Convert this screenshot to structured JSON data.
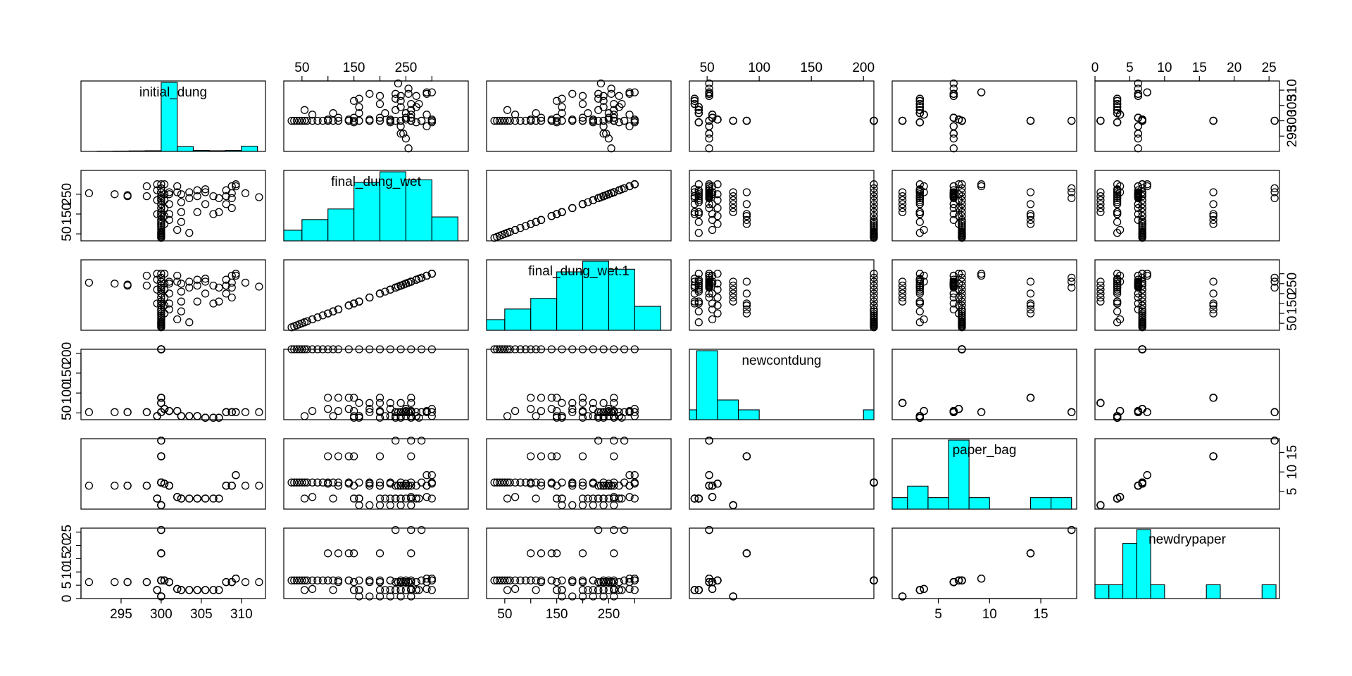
{
  "chart_data": {
    "type": "scatter",
    "variables": [
      {
        "name": "initial_dung",
        "range": [
          290,
          313
        ],
        "ticks": [
          295,
          300,
          305,
          310
        ],
        "tick_labels": [
          "295",
          "300",
          "305",
          "310"
        ]
      },
      {
        "name": "final_dung_wet",
        "range": [
          15,
          370
        ],
        "ticks": [
          50,
          150,
          250
        ],
        "tick_labels": [
          "50",
          "150",
          "250"
        ],
        "top_ticks": [
          50,
          100,
          150,
          200,
          250,
          300
        ],
        "top_tick_labels": [
          "50",
          "150",
          "250"
        ]
      },
      {
        "name": "final_dung_wet.1",
        "range": [
          15,
          370
        ],
        "ticks": [
          50,
          100,
          150,
          200,
          250,
          300
        ],
        "tick_labels": [
          "50",
          "150",
          "250"
        ]
      },
      {
        "name": "newcontdung",
        "range": [
          33,
          210
        ],
        "ticks": [
          50,
          100,
          150,
          200
        ],
        "tick_labels": [
          "50",
          "100",
          "150",
          "200"
        ]
      },
      {
        "name": "paper_bag",
        "range": [
          0.5,
          18.5
        ],
        "ticks": [
          5,
          10,
          15
        ],
        "tick_labels": [
          "5",
          "10",
          "15"
        ]
      },
      {
        "name": "newdrypaper",
        "range": [
          0,
          26.5
        ],
        "ticks": [
          0,
          5,
          10,
          15,
          20,
          25
        ],
        "tick_labels": [
          "0",
          "5",
          "10",
          "15",
          "20",
          "25"
        ]
      }
    ],
    "histograms": [
      {
        "variable": "initial_dung",
        "breaks": [
          290,
          292,
          294,
          296,
          298,
          300,
          302,
          304,
          306,
          308,
          310,
          312
        ],
        "counts": [
          0,
          1,
          2,
          3,
          4,
          400,
          28,
          6,
          4,
          6,
          30,
          0
        ]
      },
      {
        "variable": "final_dung_wet",
        "breaks": [
          0,
          50,
          100,
          150,
          200,
          250,
          300,
          350
        ],
        "counts": [
          20,
          40,
          60,
          110,
          130,
          115,
          45
        ]
      },
      {
        "variable": "final_dung_wet.1",
        "breaks": [
          0,
          50,
          100,
          150,
          200,
          250,
          300,
          350
        ],
        "counts": [
          20,
          40,
          60,
          110,
          130,
          115,
          45
        ]
      },
      {
        "variable": "newcontdung",
        "breaks": [
          20,
          40,
          60,
          80,
          100,
          120,
          140,
          160,
          180,
          200,
          220
        ],
        "counts": [
          2,
          14,
          4,
          2,
          0,
          0,
          0,
          0,
          0,
          2
        ]
      },
      {
        "variable": "paper_bag",
        "breaks": [
          0,
          2,
          4,
          6,
          8,
          10,
          12,
          14,
          16,
          18
        ],
        "counts": [
          1,
          2,
          1,
          6,
          1,
          0,
          0,
          1,
          1
        ]
      },
      {
        "variable": "newdrypaper",
        "breaks": [
          0,
          2,
          4,
          6,
          8,
          10,
          12,
          14,
          16,
          18,
          20,
          22,
          24,
          26
        ],
        "counts": [
          1,
          1,
          4,
          5,
          1,
          0,
          0,
          0,
          1,
          0,
          0,
          0,
          1
        ]
      }
    ],
    "groups": [
      {
        "id": "g1",
        "initial_dung": 291,
        "final_dung_wet": [
          255
        ],
        "newcontdung": 52,
        "paper_bag": 6.5,
        "newdrypaper": 6.2
      },
      {
        "id": "g2",
        "initial_dung": 294.2,
        "final_dung_wet": [
          250
        ],
        "newcontdung": 52,
        "paper_bag": 6.5,
        "newdrypaper": 6.2
      },
      {
        "id": "g3",
        "initial_dung": 295.8,
        "final_dung_wet": [
          240,
          245
        ],
        "newcontdung": 52,
        "paper_bag": 6.5,
        "newdrypaper": 6.2
      },
      {
        "id": "g4",
        "initial_dung": 298.2,
        "final_dung_wet": [
          240,
          290
        ],
        "newcontdung": 52,
        "paper_bag": 6.5,
        "newdrypaper": 6.2
      },
      {
        "id": "g5",
        "initial_dung": 299.5,
        "final_dung_wet": [
          150,
          220,
          270,
          300
        ],
        "newcontdung": 42,
        "paper_bag": 3.2,
        "newdrypaper": 3.2
      },
      {
        "id": "g6",
        "initial_dung": 300,
        "final_dung_wet": [
          30,
          35,
          40,
          45,
          50,
          55,
          60,
          70,
          80,
          90,
          100,
          110,
          120,
          140,
          160,
          180,
          200,
          220,
          240,
          260,
          280,
          300
        ],
        "newcontdung": 210,
        "paper_bag": 7.3,
        "newdrypaper": 6.8
      },
      {
        "id": "g7",
        "initial_dung": 300,
        "final_dung_wet": [
          160,
          180,
          200,
          220,
          240,
          260
        ],
        "newcontdung": 75,
        "paper_bag": 1.5,
        "newdrypaper": 0.8
      },
      {
        "id": "g8",
        "initial_dung": 300,
        "final_dung_wet": [
          100,
          120,
          140,
          150,
          200,
          260
        ],
        "newcontdung": 88,
        "paper_bag": 14,
        "newdrypaper": 17
      },
      {
        "id": "g9",
        "initial_dung": 300,
        "final_dung_wet": [
          230,
          260,
          280
        ],
        "newcontdung": 52,
        "paper_bag": 18,
        "newdrypaper": 25.8
      },
      {
        "id": "g10",
        "initial_dung": 300.4,
        "final_dung_wet": [
          100,
          140,
          180,
          220,
          250,
          300
        ],
        "newcontdung": 60,
        "paper_bag": 7,
        "newdrypaper": 6.8
      },
      {
        "id": "g11",
        "initial_dung": 301,
        "final_dung_wet": [
          120,
          150,
          200,
          250,
          260
        ],
        "newcontdung": 55,
        "paper_bag": 6.5,
        "newdrypaper": 6.2
      },
      {
        "id": "g12",
        "initial_dung": 302.5,
        "final_dung_wet": [
          110,
          160,
          210,
          250
        ],
        "newcontdung": 42,
        "paper_bag": 3.2,
        "newdrypaper": 3.2
      },
      {
        "id": "g13",
        "initial_dung": 302,
        "final_dung_wet": [
          70,
          260,
          290
        ],
        "newcontdung": 55,
        "paper_bag": 3.6,
        "newdrypaper": 3.6
      },
      {
        "id": "g14",
        "initial_dung": 303.5,
        "final_dung_wet": [
          55,
          230,
          260
        ],
        "newcontdung": 42,
        "paper_bag": 3.2,
        "newdrypaper": 3.2
      },
      {
        "id": "g15",
        "initial_dung": 304.5,
        "final_dung_wet": [
          160,
          240,
          270
        ],
        "newcontdung": 42,
        "paper_bag": 3.2,
        "newdrypaper": 3.2
      },
      {
        "id": "g16",
        "initial_dung": 305.5,
        "final_dung_wet": [
          200,
          260,
          275
        ],
        "newcontdung": 38,
        "paper_bag": 3.2,
        "newdrypaper": 3.2
      },
      {
        "id": "g17",
        "initial_dung": 306.5,
        "final_dung_wet": [
          150,
          240
        ],
        "newcontdung": 38,
        "paper_bag": 3.2,
        "newdrypaper": 3.2
      },
      {
        "id": "g18",
        "initial_dung": 307.2,
        "final_dung_wet": [
          160,
          230
        ],
        "newcontdung": 38,
        "paper_bag": 3.2,
        "newdrypaper": 3.2
      },
      {
        "id": "g19",
        "initial_dung": 308.1,
        "final_dung_wet": [
          200,
          240,
          270
        ],
        "newcontdung": 52,
        "paper_bag": 6.5,
        "newdrypaper": 6.2
      },
      {
        "id": "g20",
        "initial_dung": 308.8,
        "final_dung_wet": [
          180,
          230,
          255,
          290
        ],
        "newcontdung": 52,
        "paper_bag": 6.5,
        "newdrypaper": 6.2
      },
      {
        "id": "g21",
        "initial_dung": 309.3,
        "final_dung_wet": [
          290,
          300
        ],
        "newcontdung": 52,
        "paper_bag": 9.2,
        "newdrypaper": 7.5
      },
      {
        "id": "g22",
        "initial_dung": 310.5,
        "final_dung_wet": [
          255
        ],
        "newcontdung": 52,
        "paper_bag": 6.5,
        "newdrypaper": 6.2
      },
      {
        "id": "g23",
        "initial_dung": 312.2,
        "final_dung_wet": [
          235
        ],
        "newcontdung": 52,
        "paper_bag": 6.5,
        "newdrypaper": 6.2
      }
    ]
  }
}
